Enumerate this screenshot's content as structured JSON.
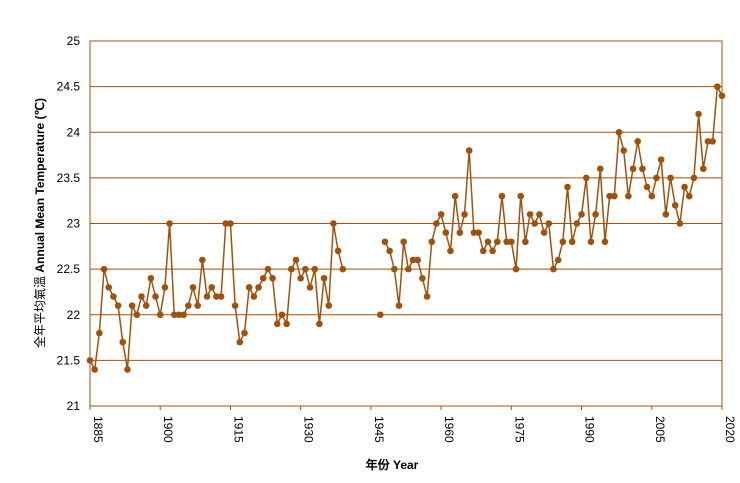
{
  "chart_data": {
    "type": "line",
    "title": "",
    "xlabel": "年份 Year",
    "ylabel": "全年平均氣溫 (℃)",
    "ylabel_en": "Annual Mean Temperature (℃)",
    "xlim": [
      1885,
      2020
    ],
    "ylim": [
      21,
      25
    ],
    "x_ticks": [
      1885,
      1900,
      1915,
      1930,
      1945,
      1960,
      1975,
      1990,
      2005,
      2020
    ],
    "y_ticks": [
      21,
      21.5,
      22,
      22.5,
      23,
      23.5,
      24,
      24.5,
      25
    ],
    "grid": "horizontal",
    "color": "#a0520d",
    "series": [
      {
        "segments": [
          [
            [
              1885,
              21.5
            ],
            [
              1886,
              21.4
            ],
            [
              1887,
              21.8
            ],
            [
              1888,
              22.5
            ],
            [
              1889,
              22.3
            ],
            [
              1890,
              22.2
            ],
            [
              1891,
              22.1
            ],
            [
              1892,
              21.7
            ],
            [
              1893,
              21.4
            ],
            [
              1894,
              22.1
            ],
            [
              1895,
              22.0
            ],
            [
              1896,
              22.2
            ],
            [
              1897,
              22.1
            ],
            [
              1898,
              22.4
            ],
            [
              1899,
              22.2
            ],
            [
              1900,
              22.0
            ],
            [
              1901,
              22.3
            ],
            [
              1902,
              23.0
            ],
            [
              1903,
              22.0
            ],
            [
              1904,
              22.0
            ],
            [
              1905,
              22.0
            ],
            [
              1906,
              22.1
            ],
            [
              1907,
              22.3
            ],
            [
              1908,
              22.1
            ],
            [
              1909,
              22.6
            ],
            [
              1910,
              22.2
            ],
            [
              1911,
              22.3
            ],
            [
              1912,
              22.2
            ],
            [
              1913,
              22.2
            ],
            [
              1914,
              23.0
            ],
            [
              1915,
              23.0
            ],
            [
              1916,
              22.1
            ],
            [
              1917,
              21.7
            ],
            [
              1918,
              21.8
            ],
            [
              1919,
              22.3
            ],
            [
              1920,
              22.2
            ],
            [
              1921,
              22.3
            ],
            [
              1922,
              22.4
            ],
            [
              1923,
              22.5
            ],
            [
              1924,
              22.4
            ],
            [
              1925,
              21.9
            ],
            [
              1926,
              22.0
            ],
            [
              1927,
              21.9
            ],
            [
              1928,
              22.5
            ],
            [
              1929,
              22.6
            ],
            [
              1930,
              22.4
            ],
            [
              1931,
              22.5
            ],
            [
              1932,
              22.3
            ],
            [
              1933,
              22.5
            ],
            [
              1934,
              21.9
            ],
            [
              1935,
              22.4
            ],
            [
              1936,
              22.1
            ],
            [
              1937,
              23.0
            ],
            [
              1938,
              22.7
            ],
            [
              1939,
              22.5
            ]
          ],
          [
            [
              1947,
              22.0
            ]
          ],
          [
            [
              1948,
              22.8
            ],
            [
              1949,
              22.7
            ],
            [
              1950,
              22.5
            ],
            [
              1951,
              22.1
            ],
            [
              1952,
              22.8
            ],
            [
              1953,
              22.5
            ],
            [
              1954,
              22.6
            ],
            [
              1955,
              22.6
            ],
            [
              1956,
              22.4
            ],
            [
              1957,
              22.2
            ],
            [
              1958,
              22.8
            ],
            [
              1959,
              23.0
            ],
            [
              1960,
              23.1
            ],
            [
              1961,
              22.9
            ],
            [
              1962,
              22.7
            ],
            [
              1963,
              23.3
            ],
            [
              1964,
              22.9
            ],
            [
              1965,
              23.1
            ],
            [
              1966,
              23.8
            ],
            [
              1967,
              22.9
            ],
            [
              1968,
              22.9
            ],
            [
              1969,
              22.7
            ],
            [
              1970,
              22.8
            ],
            [
              1971,
              22.7
            ],
            [
              1972,
              22.8
            ],
            [
              1973,
              23.3
            ],
            [
              1974,
              22.8
            ],
            [
              1975,
              22.8
            ],
            [
              1976,
              22.5
            ],
            [
              1977,
              23.3
            ],
            [
              1978,
              22.8
            ],
            [
              1979,
              23.1
            ],
            [
              1980,
              23.0
            ],
            [
              1981,
              23.1
            ],
            [
              1982,
              22.9
            ],
            [
              1983,
              23.0
            ],
            [
              1984,
              22.5
            ],
            [
              1985,
              22.6
            ],
            [
              1986,
              22.8
            ],
            [
              1987,
              23.4
            ],
            [
              1988,
              22.8
            ],
            [
              1989,
              23.0
            ],
            [
              1990,
              23.1
            ],
            [
              1991,
              23.5
            ],
            [
              1992,
              22.8
            ],
            [
              1993,
              23.1
            ],
            [
              1994,
              23.6
            ],
            [
              1995,
              22.8
            ],
            [
              1996,
              23.3
            ],
            [
              1997,
              23.3
            ],
            [
              1998,
              24.0
            ],
            [
              1999,
              23.8
            ],
            [
              2000,
              23.3
            ],
            [
              2001,
              23.6
            ],
            [
              2002,
              23.9
            ],
            [
              2003,
              23.6
            ],
            [
              2004,
              23.4
            ],
            [
              2005,
              23.3
            ],
            [
              2006,
              23.5
            ],
            [
              2007,
              23.7
            ],
            [
              2008,
              23.1
            ],
            [
              2009,
              23.5
            ],
            [
              2010,
              23.2
            ],
            [
              2011,
              23.0
            ],
            [
              2012,
              23.4
            ],
            [
              2013,
              23.3
            ],
            [
              2014,
              23.5
            ],
            [
              2015,
              24.2
            ],
            [
              2016,
              23.6
            ],
            [
              2017,
              23.9
            ],
            [
              2018,
              23.9
            ],
            [
              2019,
              24.5
            ],
            [
              2020,
              24.4
            ]
          ]
        ]
      }
    ]
  }
}
